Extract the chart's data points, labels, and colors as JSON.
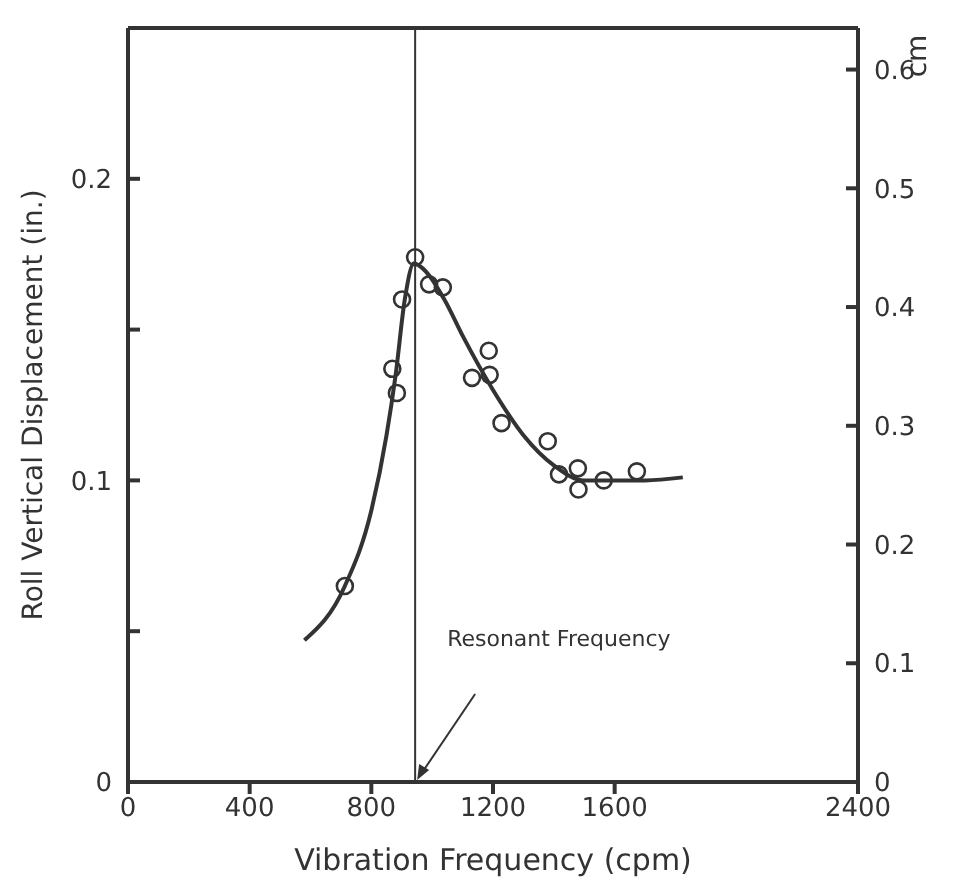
{
  "chart_data": {
    "type": "scatter",
    "xlabel": "Vibration Frequency (cpm)",
    "ylabel": "Roll Vertical Displacement (in.)",
    "y2label": "cm",
    "xlim": [
      0,
      2400
    ],
    "xticks": [
      0,
      400,
      800,
      1200,
      1600,
      2400
    ],
    "ylim": [
      0,
      0.25
    ],
    "yticks": [
      0,
      {
        "value": 0.05,
        "label": null
      },
      0.1,
      {
        "value": 0.15,
        "label": null
      },
      0.2
    ],
    "y2lim": [
      0,
      0.635
    ],
    "y2ticks": [
      0,
      0.1,
      0.2,
      0.3,
      0.4,
      0.5,
      0.6
    ],
    "legend": false,
    "marker": "circle",
    "series": [
      {
        "color": "#333333",
        "x": [
          713,
          869,
          884,
          901,
          944,
          990,
          1035,
          1131,
          1186,
          1189,
          1228,
          1380,
          1417,
          1479,
          1481,
          1564,
          1673
        ],
        "values": [
          0.065,
          0.137,
          0.129,
          0.16,
          0.174,
          0.165,
          0.164,
          0.134,
          0.143,
          0.135,
          0.119,
          0.113,
          0.102,
          0.104,
          0.097,
          0.1,
          0.103
        ]
      },
      {
        "type": "line",
        "color": "#333333",
        "marker": "none",
        "line_style": "solid",
        "x": [
          580,
          713,
          800,
          850,
          880,
          910,
          940,
          960,
          1040,
          1100,
          1200,
          1300,
          1400,
          1500,
          1600,
          1700,
          1824
        ],
        "values": [
          0.047,
          0.065,
          0.09,
          0.115,
          0.135,
          0.16,
          0.172,
          0.171,
          0.16,
          0.148,
          0.13,
          0.115,
          0.105,
          0.1,
          0.1,
          0.1,
          0.101
        ]
      }
    ],
    "ref_lines": [
      {
        "axis": "x",
        "value": 944,
        "label": "Resonant Frequency",
        "color": "#333333"
      }
    ]
  }
}
